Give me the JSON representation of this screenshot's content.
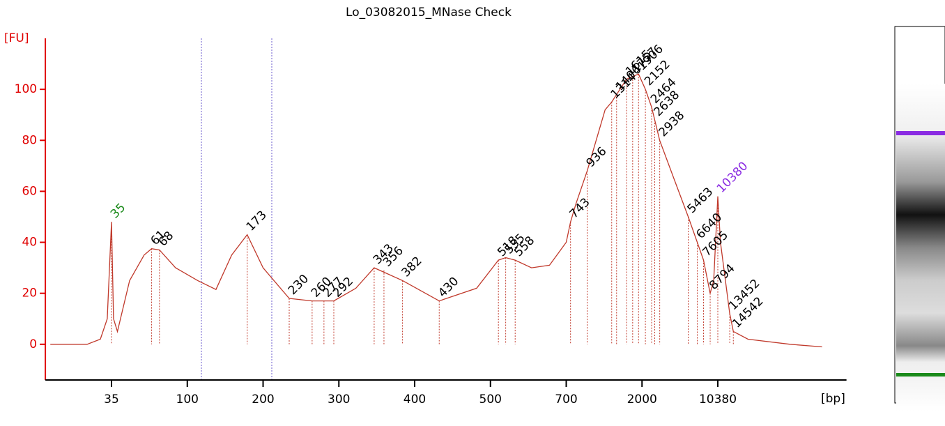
{
  "chart_data": {
    "type": "line",
    "title": "Lo_03082015_MNase Check",
    "y_label": "[FU]",
    "x_label": "[bp]",
    "xlim": [
      14,
      170000
    ],
    "xticks": [
      35,
      100,
      200,
      300,
      400,
      500,
      700,
      2000,
      10380
    ],
    "ylim": [
      -14,
      120
    ],
    "yticks": [
      0,
      20,
      40,
      60,
      80,
      100
    ],
    "axis_color": "#e00000",
    "series": [
      {
        "color": "#c0392b",
        "x": [
          15,
          25,
          30,
          33,
          35,
          36,
          38,
          45,
          55,
          61,
          68,
          85,
          110,
          130,
          150,
          173,
          200,
          230,
          260,
          292,
          320,
          343,
          382,
          430,
          480,
          518,
          535,
          558,
          600,
          650,
          700,
          743,
          800,
          936,
          1200,
          1314,
          1615,
          1906,
          2152,
          2464,
          2938,
          4000,
          5463,
          6640,
          7605,
          8794,
          9500,
          10380,
          11000,
          13452,
          14542,
          20000,
          50000,
          100000
        ],
        "values": [
          0,
          0,
          2,
          10,
          48,
          10,
          5,
          25,
          35,
          37.5,
          37,
          30,
          25,
          21.5,
          35,
          43,
          30,
          18,
          17,
          17,
          22,
          30,
          25,
          17,
          22,
          33,
          34,
          33,
          30,
          31,
          40,
          48,
          55,
          68,
          92,
          95,
          104,
          106,
          100,
          93,
          80,
          65,
          50,
          40,
          33,
          20,
          25,
          58,
          40,
          12,
          5,
          2,
          0,
          -1
        ]
      }
    ],
    "peaks": {
      "sizes": [
        35,
        61,
        68,
        173,
        230,
        260,
        277,
        292,
        343,
        356,
        382,
        430,
        518,
        535,
        558,
        743,
        936,
        1314,
        1406,
        1615,
        1757,
        1906,
        2152,
        2464,
        2638,
        2938,
        5463,
        6640,
        7605,
        8794,
        10380,
        13452,
        14542
      ],
      "fu": [
        48,
        37.5,
        37,
        43,
        18,
        17,
        17,
        17,
        30,
        29,
        25,
        17,
        33,
        34,
        33,
        48,
        68,
        95,
        98,
        104,
        105,
        106,
        100,
        93,
        88,
        80,
        50,
        40,
        33,
        20,
        58,
        12,
        5
      ],
      "colors": [
        "#1a8a1a",
        "#000",
        "#000",
        "#000",
        "#000",
        "#000",
        "#000",
        "#000",
        "#000",
        "#000",
        "#000",
        "#000",
        "#000",
        "#000",
        "#000",
        "#000",
        "#000",
        "#000",
        "#000",
        "#000",
        "#000",
        "#000",
        "#000",
        "#000",
        "#000",
        "#000",
        "#000",
        "#000",
        "#000",
        "#000",
        "#8a2be2",
        "#000",
        "#000"
      ]
    }
  }
}
